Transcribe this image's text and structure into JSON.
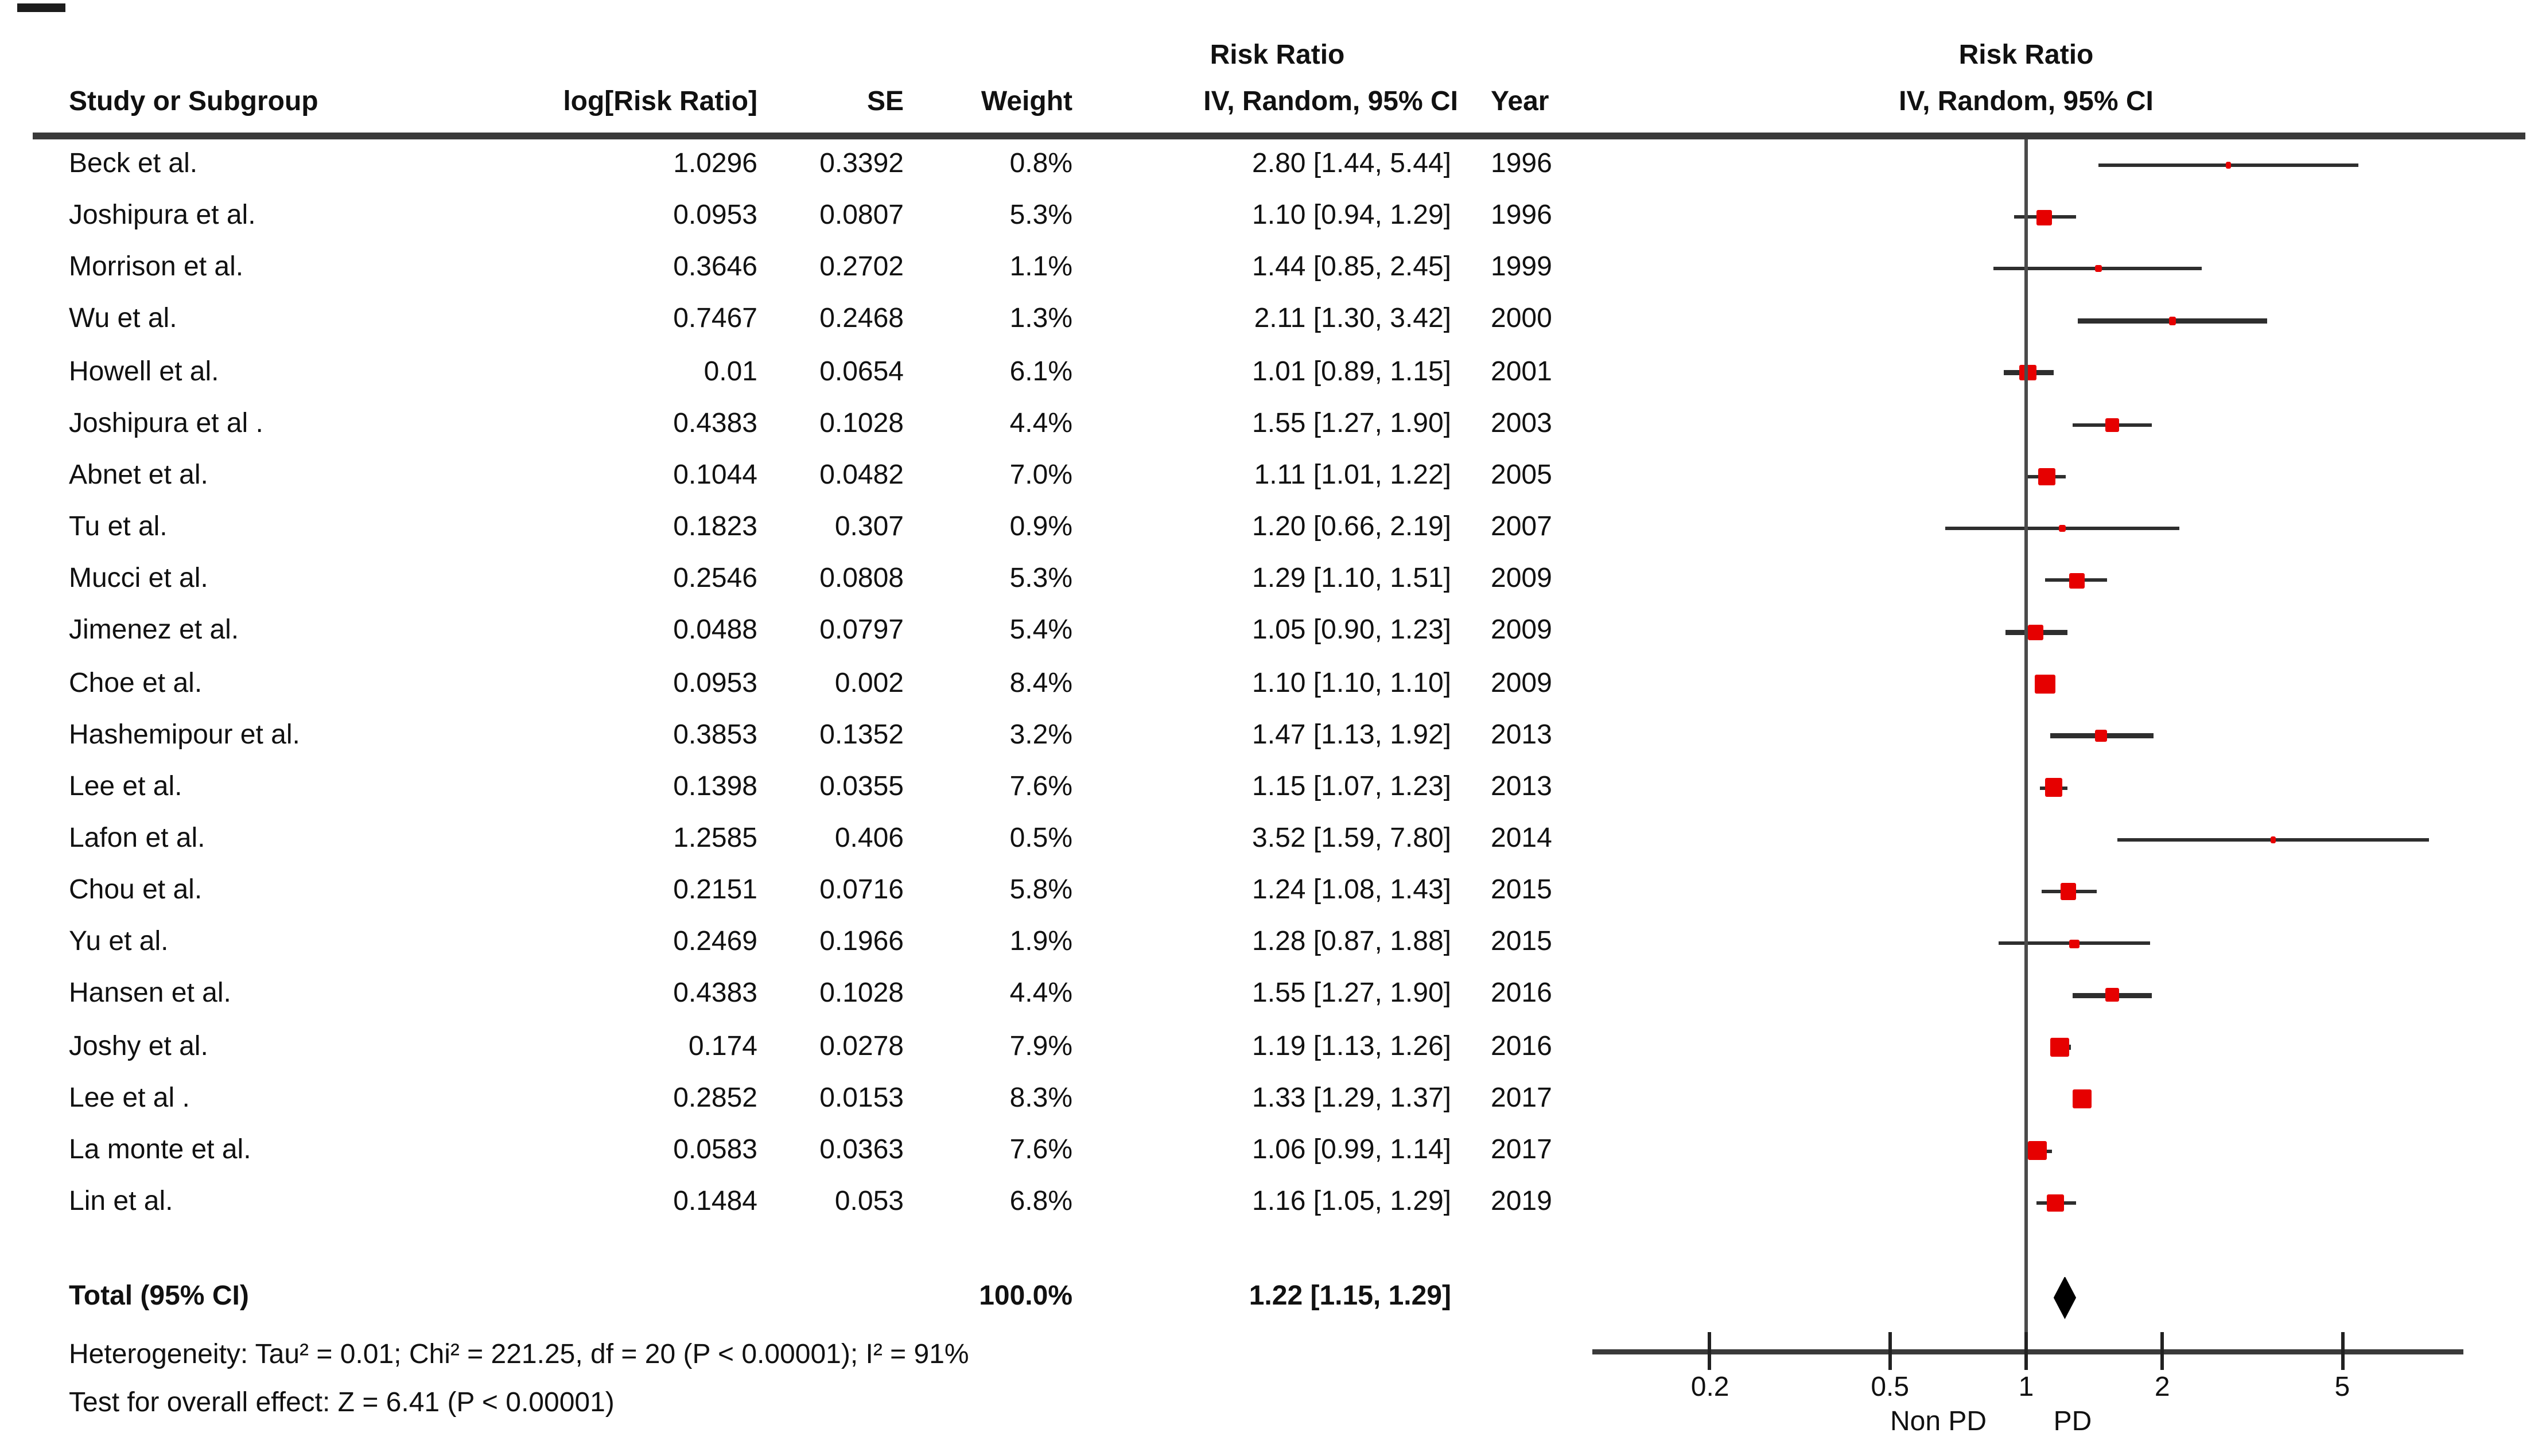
{
  "title_block": {
    "table_group_header": "Risk Ratio",
    "plot_group_header": "Risk Ratio",
    "plot_subheader": "IV, Random, 95% CI"
  },
  "columns": {
    "study": "Study or Subgroup",
    "log_rr": "log[Risk Ratio]",
    "se": "SE",
    "weight": "Weight",
    "ci": "IV, Random, 95% CI",
    "year": "Year"
  },
  "total_row": {
    "label": "Total (95% CI)",
    "weight": "100.0%",
    "ci": "1.22 [1.15, 1.29]"
  },
  "footnotes": {
    "heterogeneity": "Heterogeneity: Tau² = 0.01; Chi² = 221.25, df = 20 (P < 0.00001); I² = 91%",
    "overall_effect": "Test for overall effect: Z = 6.41 (P < 0.00001)"
  },
  "axis": {
    "left_label": "Non PD",
    "right_label": "PD"
  },
  "colors": {
    "marker": "#e60000",
    "ci_line": "#2e2e2e",
    "diamond": "#000000",
    "rule": "#3a3a3a"
  },
  "chart_data": {
    "type": "scatter",
    "subtype": "forest_plot_random_effects",
    "effect_measure": "Risk Ratio",
    "model": "IV, Random, 95% CI",
    "x_scale": "log",
    "x_ticks": [
      0.2,
      0.5,
      1,
      2,
      5
    ],
    "x_tick_labels": [
      "0.2",
      "0.5",
      "1",
      "2",
      "5"
    ],
    "null_line": 1,
    "favours_left": "Non PD",
    "favours_right": "PD",
    "studies": [
      {
        "name": "Beck et al.",
        "log_rr": "1.0296",
        "se": "0.3392",
        "weight": "0.8%",
        "ci_text": "2.80 [1.44, 5.44]",
        "year": "1996",
        "rr": 2.8,
        "low": 1.44,
        "high": 5.44,
        "w": 0.8
      },
      {
        "name": "Joshipura et al.",
        "log_rr": "0.0953",
        "se": "0.0807",
        "weight": "5.3%",
        "ci_text": "1.10 [0.94, 1.29]",
        "year": "1996",
        "rr": 1.1,
        "low": 0.94,
        "high": 1.29,
        "w": 5.3
      },
      {
        "name": "Morrison et al.",
        "log_rr": "0.3646",
        "se": "0.2702",
        "weight": "1.1%",
        "ci_text": "1.44 [0.85, 2.45]",
        "year": "1999",
        "rr": 1.44,
        "low": 0.85,
        "high": 2.45,
        "w": 1.1
      },
      {
        "name": "Wu et al.",
        "log_rr": "0.7467",
        "se": "0.2468",
        "weight": "1.3%",
        "ci_text": "2.11 [1.30, 3.42]",
        "year": "2000",
        "rr": 2.11,
        "low": 1.3,
        "high": 3.42,
        "w": 1.3
      },
      {
        "name": "Howell et al.",
        "log_rr": "0.01",
        "se": "0.0654",
        "weight": "6.1%",
        "ci_text": "1.01 [0.89, 1.15]",
        "year": "2001",
        "rr": 1.01,
        "low": 0.89,
        "high": 1.15,
        "w": 6.1
      },
      {
        "name": "Joshipura et al .",
        "log_rr": "0.4383",
        "se": "0.1028",
        "weight": "4.4%",
        "ci_text": "1.55 [1.27, 1.90]",
        "year": "2003",
        "rr": 1.55,
        "low": 1.27,
        "high": 1.9,
        "w": 4.4
      },
      {
        "name": "Abnet et al.",
        "log_rr": "0.1044",
        "se": "0.0482",
        "weight": "7.0%",
        "ci_text": "1.11 [1.01, 1.22]",
        "year": "2005",
        "rr": 1.11,
        "low": 1.01,
        "high": 1.22,
        "w": 7.0
      },
      {
        "name": "Tu et al.",
        "log_rr": "0.1823",
        "se": "0.307",
        "weight": "0.9%",
        "ci_text": "1.20 [0.66, 2.19]",
        "year": "2007",
        "rr": 1.2,
        "low": 0.66,
        "high": 2.19,
        "w": 0.9
      },
      {
        "name": "Mucci et al.",
        "log_rr": "0.2546",
        "se": "0.0808",
        "weight": "5.3%",
        "ci_text": "1.29 [1.10, 1.51]",
        "year": "2009",
        "rr": 1.29,
        "low": 1.1,
        "high": 1.51,
        "w": 5.3
      },
      {
        "name": "Jimenez et al.",
        "log_rr": "0.0488",
        "se": "0.0797",
        "weight": "5.4%",
        "ci_text": "1.05 [0.90, 1.23]",
        "year": "2009",
        "rr": 1.05,
        "low": 0.9,
        "high": 1.23,
        "w": 5.4
      },
      {
        "name": "Choe et al.",
        "log_rr": "0.0953",
        "se": "0.002",
        "weight": "8.4%",
        "ci_text": "1.10 [1.10, 1.10]",
        "year": "2009",
        "rr": 1.1,
        "low": 1.1,
        "high": 1.1,
        "w": 8.4
      },
      {
        "name": "Hashemipour et al.",
        "log_rr": "0.3853",
        "se": "0.1352",
        "weight": "3.2%",
        "ci_text": "1.47 [1.13, 1.92]",
        "year": "2013",
        "rr": 1.47,
        "low": 1.13,
        "high": 1.92,
        "w": 3.2
      },
      {
        "name": "Lee et al.",
        "log_rr": "0.1398",
        "se": "0.0355",
        "weight": "7.6%",
        "ci_text": "1.15 [1.07, 1.23]",
        "year": "2013",
        "rr": 1.15,
        "low": 1.07,
        "high": 1.23,
        "w": 7.6
      },
      {
        "name": "Lafon et al.",
        "log_rr": "1.2585",
        "se": "0.406",
        "weight": "0.5%",
        "ci_text": "3.52 [1.59, 7.80]",
        "year": "2014",
        "rr": 3.52,
        "low": 1.59,
        "high": 7.8,
        "w": 0.5
      },
      {
        "name": "Chou et al.",
        "log_rr": "0.2151",
        "se": "0.0716",
        "weight": "5.8%",
        "ci_text": "1.24 [1.08, 1.43]",
        "year": "2015",
        "rr": 1.24,
        "low": 1.08,
        "high": 1.43,
        "w": 5.8
      },
      {
        "name": "Yu et al.",
        "log_rr": "0.2469",
        "se": "0.1966",
        "weight": "1.9%",
        "ci_text": "1.28 [0.87, 1.88]",
        "year": "2015",
        "rr": 1.28,
        "low": 0.87,
        "high": 1.88,
        "w": 1.9
      },
      {
        "name": "Hansen et al.",
        "log_rr": "0.4383",
        "se": "0.1028",
        "weight": "4.4%",
        "ci_text": "1.55 [1.27, 1.90]",
        "year": "2016",
        "rr": 1.55,
        "low": 1.27,
        "high": 1.9,
        "w": 4.4
      },
      {
        "name": "Joshy et al.",
        "log_rr": "0.174",
        "se": "0.0278",
        "weight": "7.9%",
        "ci_text": "1.19 [1.13, 1.26]",
        "year": "2016",
        "rr": 1.19,
        "low": 1.13,
        "high": 1.26,
        "w": 7.9
      },
      {
        "name": "Lee et al .",
        "log_rr": "0.2852",
        "se": "0.0153",
        "weight": "8.3%",
        "ci_text": "1.33 [1.29, 1.37]",
        "year": "2017",
        "rr": 1.33,
        "low": 1.29,
        "high": 1.37,
        "w": 8.3
      },
      {
        "name": "La monte et al.",
        "log_rr": "0.0583",
        "se": "0.0363",
        "weight": "7.6%",
        "ci_text": "1.06 [0.99, 1.14]",
        "year": "2017",
        "rr": 1.06,
        "low": 0.99,
        "high": 1.14,
        "w": 7.6
      },
      {
        "name": "Lin et al.",
        "log_rr": "0.1484",
        "se": "0.053",
        "weight": "6.8%",
        "ci_text": "1.16 [1.05, 1.29]",
        "year": "2019",
        "rr": 1.16,
        "low": 1.05,
        "high": 1.29,
        "w": 6.8
      }
    ],
    "total": {
      "label": "Total (95% CI)",
      "weight_pct": 100.0,
      "rr": 1.22,
      "low": 1.15,
      "high": 1.29
    },
    "heterogeneity": {
      "tau2": 0.01,
      "chi2": 221.25,
      "df": 20,
      "p": "< 0.00001",
      "i2": "91%"
    },
    "overall_effect": {
      "z": 6.41,
      "p": "< 0.00001"
    }
  }
}
